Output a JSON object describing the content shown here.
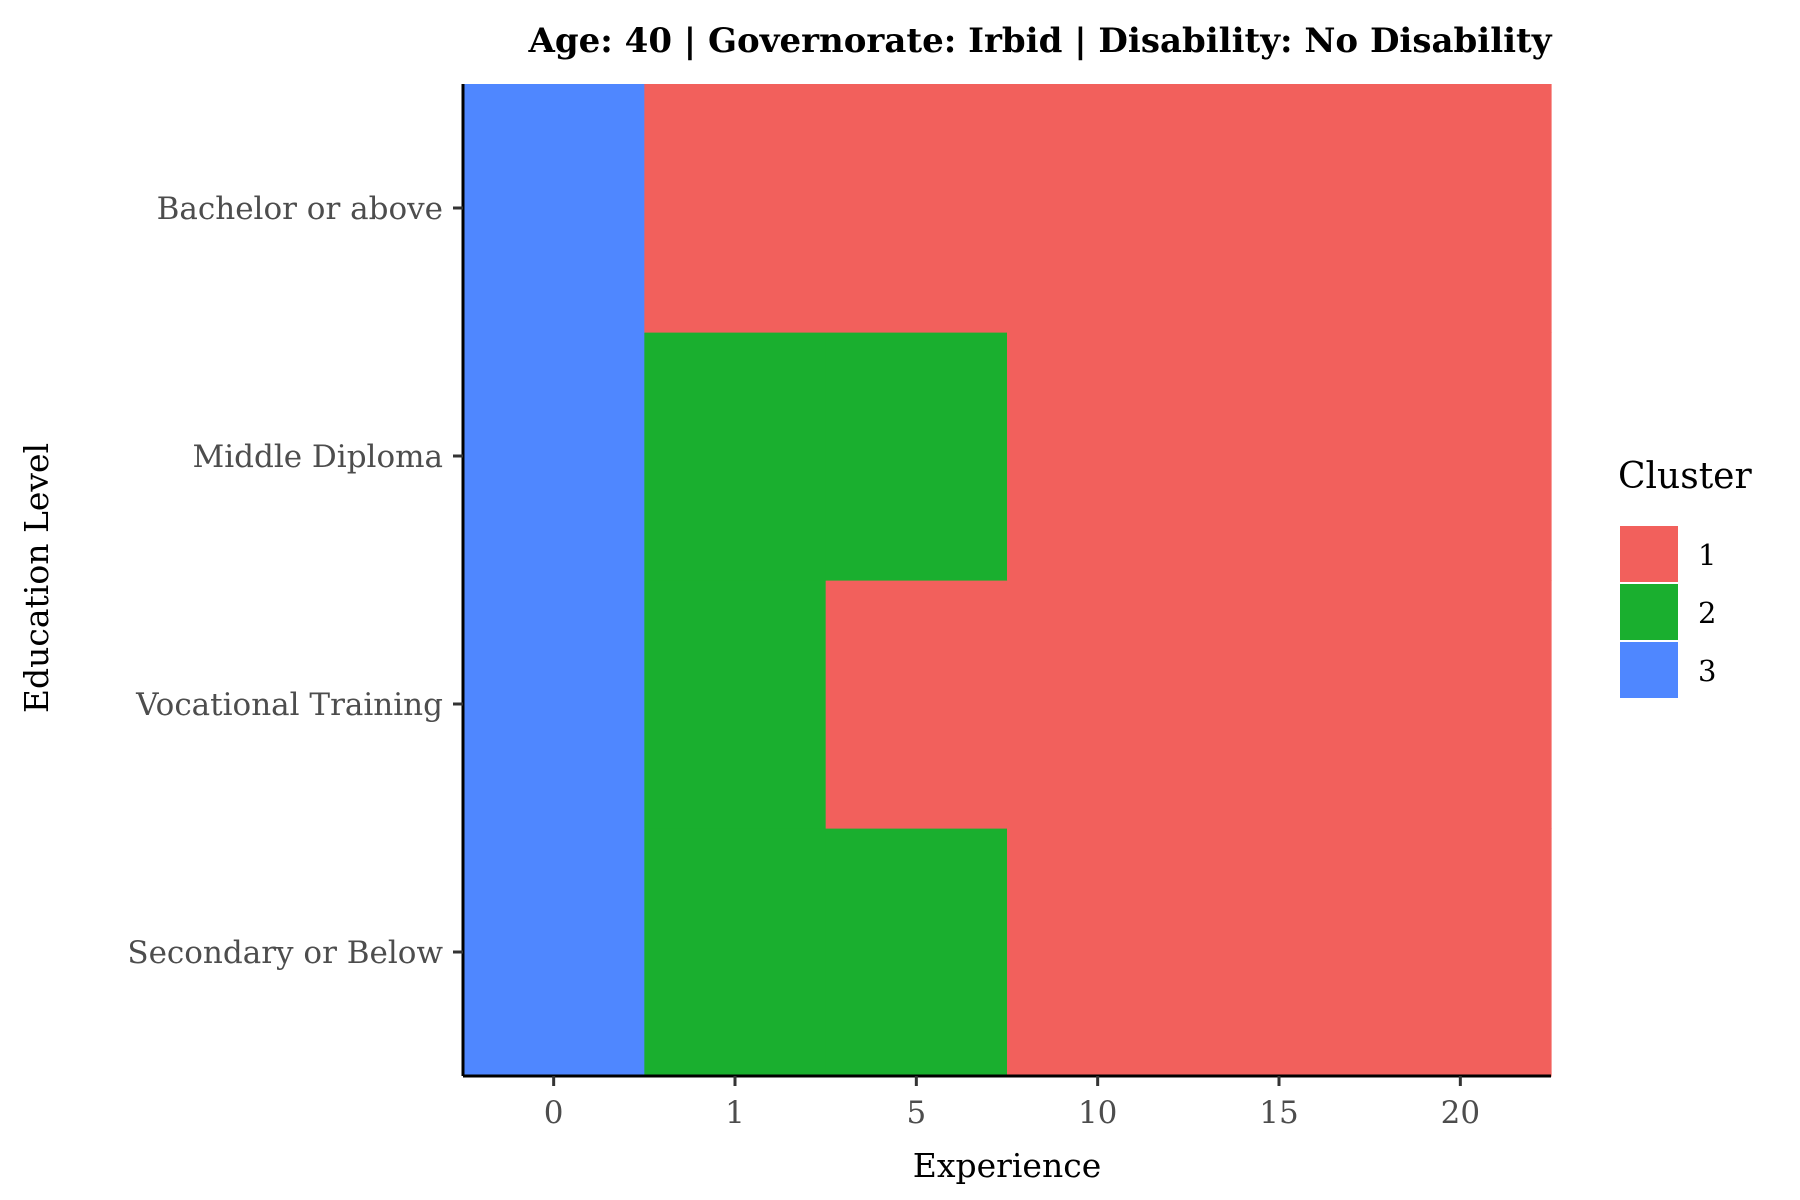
{
  "chart_data": {
    "type": "heatmap",
    "title": "Age: 40 | Governorate: Irbid | Disability: No Disability",
    "xlabel": "Experience",
    "ylabel": "Education Level",
    "x": [
      "0",
      "1",
      "5",
      "10",
      "15",
      "20"
    ],
    "y": [
      "Secondary or Below",
      "Vocational Training",
      "Middle Diploma",
      "Bachelor or above"
    ],
    "values": [
      [
        3,
        2,
        2,
        1,
        1,
        1
      ],
      [
        3,
        2,
        1,
        1,
        1,
        1
      ],
      [
        3,
        2,
        2,
        1,
        1,
        1
      ],
      [
        3,
        1,
        1,
        1,
        1,
        1
      ]
    ],
    "legend": {
      "title": "Cluster",
      "placement": "right",
      "items": [
        {
          "label": "1",
          "color": "#F2605C"
        },
        {
          "label": "2",
          "color": "#1AAF2F"
        },
        {
          "label": "3",
          "color": "#4F87FF"
        }
      ]
    },
    "grid": false
  }
}
